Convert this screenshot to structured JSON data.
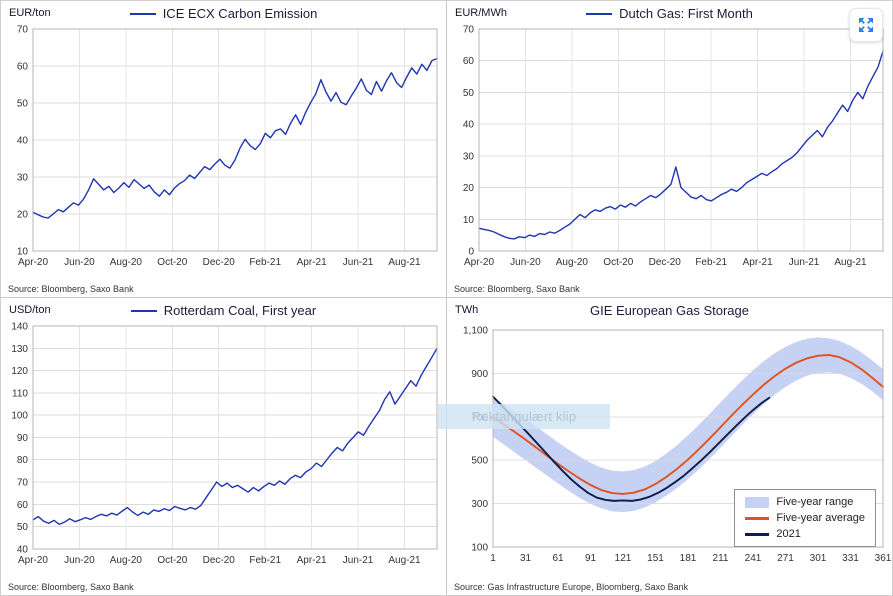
{
  "watermark": {
    "text": "Rektangulært klip"
  },
  "expand_button": {
    "label": "expand"
  },
  "chart_data": [
    {
      "id": "carbon",
      "type": "line",
      "title": "ICE ECX Carbon Emission",
      "unit": "EUR/ton",
      "source": "Source: Bloomberg, Saxo Bank",
      "line_color": "#1f35b2",
      "ylim": [
        10,
        70
      ],
      "y_ticks": [
        10,
        20,
        30,
        40,
        50,
        60,
        70
      ],
      "x_tick_labels": [
        "Apr-20",
        "Jun-20",
        "Aug-20",
        "Oct-20",
        "Dec-20",
        "Feb-21",
        "Apr-21",
        "Jun-21",
        "Aug-21"
      ],
      "x_span_months": 17.4,
      "values": [
        20.5,
        19.8,
        19.2,
        18.9,
        20,
        21.2,
        20.6,
        21.8,
        23,
        22.4,
        24,
        26.5,
        29.5,
        28,
        26.5,
        27.5,
        25.8,
        27,
        28.5,
        27.2,
        29.3,
        28.1,
        26.9,
        27.8,
        26,
        24.8,
        26.5,
        25.2,
        27,
        28.2,
        29,
        30.5,
        29.6,
        31.2,
        32.8,
        32,
        33.5,
        34.8,
        33.2,
        32.4,
        34.6,
        37.8,
        40.2,
        38.5,
        37.4,
        39,
        41.8,
        40.6,
        42.5,
        43,
        41.5,
        44.5,
        46.8,
        44.2,
        47.5,
        50.2,
        52.5,
        56.3,
        53,
        50.5,
        52.8,
        50.2,
        49.5,
        51.8,
        54,
        56.5,
        53.5,
        52.3,
        55.8,
        53.2,
        56,
        58.2,
        55.5,
        54.2,
        57,
        59.5,
        57.8,
        60.5,
        58.8,
        61.5,
        62
      ]
    },
    {
      "id": "dutchgas",
      "type": "line",
      "title": "Dutch Gas: First Month",
      "unit": "EUR/MWh",
      "source": "Source: Bloomberg, Saxo Bank",
      "line_color": "#1f35b2",
      "ylim": [
        0,
        70
      ],
      "y_ticks": [
        0,
        10,
        20,
        30,
        40,
        50,
        60,
        70
      ],
      "x_tick_labels": [
        "Apr-20",
        "Jun-20",
        "Aug-20",
        "Oct-20",
        "Dec-20",
        "Feb-21",
        "Apr-21",
        "Jun-21",
        "Aug-21"
      ],
      "x_span_months": 17.4,
      "values": [
        7.2,
        6.8,
        6.5,
        6,
        5.2,
        4.5,
        4,
        3.8,
        4.5,
        4.2,
        5,
        4.6,
        5.5,
        5.2,
        6,
        5.6,
        6.5,
        7.5,
        8.5,
        10,
        11.5,
        10.5,
        12,
        13,
        12.5,
        13.5,
        14,
        13.2,
        14.5,
        13.8,
        15,
        14.2,
        15.5,
        16.5,
        17.5,
        16.8,
        18,
        19.5,
        21,
        26.5,
        20,
        18.5,
        17,
        16.5,
        17.5,
        16.2,
        15.8,
        16.8,
        17.8,
        18.5,
        19.5,
        18.8,
        20,
        21.5,
        22.5,
        23.5,
        24.5,
        23.8,
        25,
        26,
        27.5,
        28.5,
        29.5,
        31,
        33,
        35,
        36.5,
        38,
        36,
        39,
        41,
        43.5,
        46,
        44,
        47.5,
        50,
        48,
        52,
        55,
        58,
        63
      ]
    },
    {
      "id": "coal",
      "type": "line",
      "title": "Rotterdam Coal, First year",
      "unit": "USD/ton",
      "source": "Source: Bloomberg, Saxo Bank",
      "line_color": "#1f35b2",
      "ylim": [
        40,
        140
      ],
      "y_ticks": [
        40,
        50,
        60,
        70,
        80,
        90,
        100,
        110,
        120,
        130,
        140
      ],
      "x_tick_labels": [
        "Apr-20",
        "Jun-20",
        "Aug-20",
        "Oct-20",
        "Dec-20",
        "Feb-21",
        "Apr-21",
        "Jun-21",
        "Aug-21"
      ],
      "x_span_months": 17.4,
      "values": [
        53,
        54.5,
        52.5,
        51.5,
        52.8,
        51,
        52,
        53.5,
        52.2,
        53,
        54,
        53.2,
        54.5,
        55.5,
        54.8,
        56,
        55.2,
        57,
        58.5,
        56.5,
        55,
        56.5,
        55.5,
        57.5,
        56.8,
        58,
        57.2,
        59,
        58.2,
        57.5,
        58.5,
        57.8,
        59.5,
        63,
        66.5,
        70,
        68,
        69.5,
        67.5,
        68.5,
        67,
        65.5,
        67.5,
        66,
        68,
        69.5,
        68.5,
        70.5,
        69,
        71.5,
        73,
        72,
        74.5,
        76,
        78.5,
        77,
        80,
        83,
        85.5,
        84,
        87.5,
        90,
        92.5,
        91,
        95,
        98.5,
        102,
        107,
        110.5,
        105,
        108.5,
        112,
        115.5,
        113,
        118,
        122,
        126,
        130
      ]
    },
    {
      "id": "storage",
      "type": "area",
      "title": "GIE European Gas Storage",
      "unit": "TWh",
      "source": "Source: Gas Infrastructure Europe, Bloomberg, Saxo Bank",
      "band_color": "#c6d2f3",
      "xlim": [
        1,
        361
      ],
      "ylim": [
        100,
        1100
      ],
      "y_ticks": [
        100,
        300,
        500,
        700,
        900,
        1100
      ],
      "y_tick_labels": [
        "100",
        "300",
        "500",
        "700",
        "900",
        "1,100"
      ],
      "x_ticks": [
        1,
        31,
        61,
        91,
        121,
        151,
        181,
        211,
        241,
        271,
        301,
        331,
        361
      ],
      "series": [
        {
          "name": "Five-year range",
          "type": "band",
          "x": [
            1,
            11,
            21,
            31,
            41,
            51,
            61,
            71,
            81,
            91,
            101,
            111,
            121,
            131,
            141,
            151,
            161,
            171,
            181,
            191,
            201,
            211,
            221,
            231,
            241,
            251,
            261,
            271,
            281,
            291,
            301,
            311,
            321,
            331,
            341,
            351,
            361
          ],
          "upper": [
            790,
            757,
            724,
            690,
            655,
            618,
            582,
            548,
            516,
            488,
            466,
            452,
            448,
            454,
            470,
            496,
            530,
            570,
            615,
            663,
            714,
            766,
            818,
            868,
            915,
            957,
            993,
            1023,
            1046,
            1060,
            1066,
            1062,
            1050,
            1028,
            997,
            960,
            920
          ],
          "lower": [
            608,
            572,
            536,
            500,
            464,
            428,
            392,
            358,
            326,
            298,
            278,
            264,
            260,
            266,
            282,
            306,
            336,
            372,
            413,
            458,
            507,
            558,
            610,
            662,
            712,
            759,
            801,
            838,
            868,
            890,
            902,
            905,
            898,
            880,
            853,
            818,
            778
          ]
        },
        {
          "name": "Five-year average",
          "type": "line",
          "color": "#e0521e",
          "x": [
            1,
            11,
            21,
            31,
            41,
            51,
            61,
            71,
            81,
            91,
            101,
            111,
            121,
            131,
            141,
            151,
            161,
            171,
            181,
            191,
            201,
            211,
            221,
            231,
            241,
            251,
            261,
            271,
            281,
            291,
            301,
            311,
            321,
            331,
            341,
            351,
            361
          ],
          "values": [
            700,
            665,
            630,
            595,
            558,
            520,
            483,
            448,
            415,
            385,
            362,
            348,
            344,
            350,
            365,
            390,
            422,
            460,
            503,
            550,
            600,
            652,
            704,
            755,
            803,
            848,
            888,
            922,
            950,
            970,
            982,
            985,
            975,
            952,
            920,
            880,
            838
          ]
        },
        {
          "name": "2021",
          "type": "line",
          "color": "#101a4d",
          "x": [
            1,
            9,
            17,
            25,
            33,
            41,
            49,
            57,
            65,
            73,
            81,
            89,
            97,
            105,
            113,
            121,
            129,
            137,
            145,
            153,
            161,
            169,
            177,
            185,
            193,
            201,
            209,
            217,
            225,
            233,
            241,
            249,
            256
          ],
          "values": [
            793,
            752,
            710,
            668,
            625,
            582,
            538,
            494,
            452,
            412,
            378,
            348,
            327,
            316,
            312,
            314,
            312,
            318,
            330,
            348,
            371,
            398,
            428,
            462,
            498,
            536,
            576,
            616,
            656,
            695,
            731,
            764,
            788
          ]
        }
      ]
    }
  ]
}
